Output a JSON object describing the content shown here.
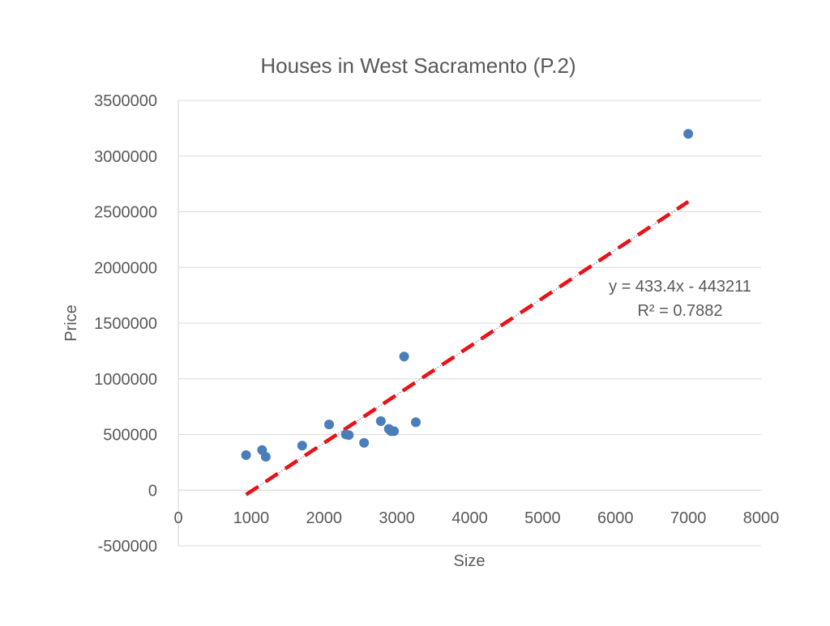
{
  "chart_data": {
    "type": "scatter",
    "title": "Houses in West Sacramento (P.2)",
    "xlabel": "Size",
    "ylabel": "Price",
    "xlim": [
      0,
      8000
    ],
    "ylim": [
      -500000,
      3500000
    ],
    "x_ticks": [
      "0",
      "1000",
      "2000",
      "3000",
      "4000",
      "5000",
      "6000",
      "7000",
      "8000"
    ],
    "y_ticks": [
      "3500000",
      "3000000",
      "2500000",
      "2000000",
      "1500000",
      "1000000",
      "500000",
      "0",
      "-500000"
    ],
    "grid": "horizontal",
    "points": [
      {
        "x": 930,
        "y": 315000
      },
      {
        "x": 1150,
        "y": 360000
      },
      {
        "x": 1200,
        "y": 300000
      },
      {
        "x": 1700,
        "y": 400000
      },
      {
        "x": 2070,
        "y": 590000
      },
      {
        "x": 2300,
        "y": 500000
      },
      {
        "x": 2340,
        "y": 495000
      },
      {
        "x": 2550,
        "y": 425000
      },
      {
        "x": 2780,
        "y": 620000
      },
      {
        "x": 2890,
        "y": 550000
      },
      {
        "x": 2920,
        "y": 530000
      },
      {
        "x": 2960,
        "y": 530000
      },
      {
        "x": 3100,
        "y": 1200000
      },
      {
        "x": 3260,
        "y": 610000
      },
      {
        "x": 7000,
        "y": 3200000
      }
    ],
    "trendline": {
      "slope": 433.4,
      "intercept": -443211,
      "x_range": [
        930,
        7000
      ],
      "equation_label": "y = 433.4x - 443211",
      "r2_label": "R² = 0.7882"
    },
    "colors": {
      "points": "#4a7ebb",
      "trendline_dashed": "#ff0000",
      "trendline_dotted": "#4a7ebb",
      "grid": "#d9d9d9",
      "text": "#595959"
    }
  }
}
